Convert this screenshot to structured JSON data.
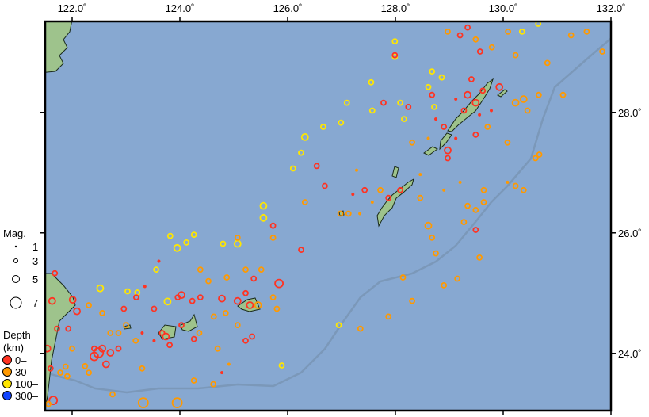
{
  "map": {
    "extent": {
      "lon": [
        121.5,
        132.0
      ],
      "lat": [
        23.05,
        29.51
      ]
    },
    "colors": {
      "ocean": "#87a8d1",
      "land": "#9ec38c",
      "trench": "#7b98b9",
      "frame": "#000000"
    },
    "lon_ticks": [
      {
        "value": 122,
        "label": "122.0˚"
      },
      {
        "value": 124,
        "label": "124.0˚"
      },
      {
        "value": 126,
        "label": "126.0˚"
      },
      {
        "value": 128,
        "label": "128.0˚"
      },
      {
        "value": 130,
        "label": "130.0˚"
      },
      {
        "value": 132,
        "label": "132.0˚"
      }
    ],
    "lat_ticks": [
      {
        "value": 28,
        "label": "28.0˚"
      },
      {
        "value": 26,
        "label": "26.0˚"
      },
      {
        "value": 24,
        "label": "24.0˚"
      }
    ]
  },
  "legend": {
    "magnitude_title": "Mag.",
    "magnitudes": [
      {
        "value": 1,
        "label": "1"
      },
      {
        "value": 3,
        "label": "3"
      },
      {
        "value": 5,
        "label": "5"
      },
      {
        "value": 7,
        "label": "7"
      }
    ],
    "depth_title_1": "Depth",
    "depth_title_2": "(km)",
    "depths": [
      {
        "label": "0–",
        "color": "#ff3322"
      },
      {
        "label": "30–",
        "color": "#ff9900"
      },
      {
        "label": "100–",
        "color": "#ffe600"
      },
      {
        "label": "300–",
        "color": "#1144ff"
      }
    ]
  },
  "earthquakes": [
    [
      126.32,
      27.59,
      4,
      2
    ],
    [
      126.25,
      27.33,
      3,
      2
    ],
    [
      126.1,
      27.07,
      3,
      2
    ],
    [
      126.66,
      27.76,
      3,
      2
    ],
    [
      126.99,
      27.83,
      3,
      2
    ],
    [
      127.1,
      28.16,
      3,
      2
    ],
    [
      127.55,
      28.5,
      3,
      2
    ],
    [
      127.99,
      29.18,
      3,
      2
    ],
    [
      127.99,
      28.92,
      3,
      2
    ],
    [
      125.55,
      26.45,
      4,
      2
    ],
    [
      125.55,
      26.25,
      4,
      2
    ],
    [
      125.07,
      25.82,
      4,
      2
    ],
    [
      124.8,
      25.82,
      3,
      2
    ],
    [
      124.26,
      25.97,
      3,
      2
    ],
    [
      124.12,
      25.84,
      3,
      2
    ],
    [
      123.95,
      25.75,
      4,
      2
    ],
    [
      123.82,
      25.95,
      3,
      2
    ],
    [
      123.56,
      25.39,
      3,
      2
    ],
    [
      122.52,
      25.08,
      4,
      2
    ],
    [
      123.03,
      25.03,
      3,
      2
    ],
    [
      123.21,
      25.01,
      3,
      2
    ],
    [
      123.77,
      24.86,
      4,
      2
    ],
    [
      125.89,
      23.8,
      3,
      2
    ],
    [
      126.95,
      24.47,
      3,
      2
    ],
    [
      128.86,
      28.58,
      3,
      2
    ],
    [
      128.61,
      28.42,
      3,
      2
    ],
    [
      128.68,
      28.68,
      3,
      2
    ],
    [
      128.72,
      28.09,
      3,
      2
    ],
    [
      128.09,
      28.16,
      3,
      2
    ],
    [
      128.16,
      27.89,
      3,
      2
    ],
    [
      127.57,
      28.03,
      3,
      2
    ],
    [
      130.35,
      29.34,
      3,
      2
    ],
    [
      130.65,
      29.47,
      3,
      2
    ],
    [
      129.34,
      28.29,
      4,
      0
    ],
    [
      129.49,
      28.16,
      4,
      0
    ],
    [
      129.27,
      28.03,
      3,
      0
    ],
    [
      129.62,
      28.36,
      3,
      0
    ],
    [
      129.12,
      28.22,
      2,
      0
    ],
    [
      129.56,
      27.96,
      2,
      0
    ],
    [
      129.78,
      28.03,
      2,
      0
    ],
    [
      129.41,
      28.55,
      3,
      0
    ],
    [
      128.9,
      27.76,
      3,
      0
    ],
    [
      129.49,
      27.63,
      3,
      0
    ],
    [
      128.97,
      27.24,
      3,
      0
    ],
    [
      128.97,
      27.37,
      4,
      0
    ],
    [
      129.12,
      27.57,
      2,
      0
    ],
    [
      129.57,
      29.01,
      3,
      0
    ],
    [
      129.2,
      29.28,
      3,
      0
    ],
    [
      129.34,
      29.41,
      3,
      0
    ],
    [
      129.93,
      28.42,
      4,
      0
    ],
    [
      129.49,
      26.05,
      3,
      0
    ],
    [
      130.23,
      28.16,
      4,
      1
    ],
    [
      130.38,
      28.22,
      4,
      1
    ],
    [
      130.66,
      28.29,
      3,
      1
    ],
    [
      130.45,
      28.03,
      3,
      1
    ],
    [
      131.11,
      28.29,
      3,
      1
    ],
    [
      131.26,
      29.28,
      3,
      1
    ],
    [
      131.55,
      29.34,
      3,
      1
    ],
    [
      131.84,
      29.01,
      3,
      1
    ],
    [
      130.82,
      28.82,
      3,
      1
    ],
    [
      130.23,
      28.95,
      3,
      1
    ],
    [
      129.79,
      29.08,
      3,
      1
    ],
    [
      129.49,
      29.21,
      3,
      1
    ],
    [
      130.09,
      29.34,
      3,
      1
    ],
    [
      128.97,
      29.34,
      3,
      1
    ],
    [
      129.71,
      27.76,
      3,
      1
    ],
    [
      130.08,
      27.5,
      3,
      1
    ],
    [
      130.23,
      26.78,
      3,
      1
    ],
    [
      130.38,
      26.71,
      3,
      1
    ],
    [
      130.6,
      27.24,
      3,
      1
    ],
    [
      130.67,
      27.3,
      3,
      1
    ],
    [
      130.08,
      26.84,
      2,
      1
    ],
    [
      129.64,
      26.71,
      3,
      1
    ],
    [
      129.34,
      26.45,
      3,
      1
    ],
    [
      129.49,
      26.38,
      3,
      1
    ],
    [
      129.64,
      26.51,
      3,
      1
    ],
    [
      129.27,
      26.18,
      3,
      1
    ],
    [
      129.56,
      25.59,
      3,
      1
    ],
    [
      128.61,
      26.12,
      4,
      1
    ],
    [
      128.68,
      25.92,
      3,
      1
    ],
    [
      128.75,
      25.66,
      3,
      1
    ],
    [
      128.9,
      25.13,
      3,
      1
    ],
    [
      129.15,
      25.24,
      3,
      1
    ],
    [
      128.14,
      25.26,
      3,
      1
    ],
    [
      128.31,
      24.87,
      3,
      1
    ],
    [
      127.87,
      24.61,
      3,
      1
    ],
    [
      127.35,
      24.41,
      3,
      1
    ],
    [
      128.46,
      26.58,
      3,
      1
    ],
    [
      129.2,
      26.84,
      2,
      1
    ],
    [
      128.9,
      26.71,
      2,
      1
    ],
    [
      128.46,
      26.97,
      2,
      1
    ],
    [
      128.31,
      27.5,
      3,
      1
    ],
    [
      128.61,
      27.57,
      2,
      1
    ],
    [
      127.72,
      26.71,
      3,
      1
    ],
    [
      127.57,
      26.51,
      2,
      1
    ],
    [
      126.98,
      26.32,
      3,
      1
    ],
    [
      127.13,
      26.32,
      3,
      1
    ],
    [
      126.32,
      26.51,
      3,
      1
    ],
    [
      127.34,
      26.32,
      2,
      1
    ],
    [
      127.28,
      27.04,
      2,
      1
    ],
    [
      127.87,
      26.58,
      3,
      0
    ],
    [
      128.09,
      26.71,
      3,
      0
    ],
    [
      127.43,
      26.71,
      3,
      0
    ],
    [
      127.21,
      26.64,
      2,
      0
    ],
    [
      126.54,
      27.11,
      3,
      0
    ],
    [
      126.69,
      26.78,
      3,
      0
    ],
    [
      128.24,
      28.09,
      3,
      0
    ],
    [
      127.99,
      28.95,
      3,
      0
    ],
    [
      127.78,
      28.16,
      3,
      0
    ],
    [
      128.75,
      27.89,
      2,
      0
    ],
    [
      128.68,
      28.29,
      3,
      0
    ],
    [
      125.73,
      26.12,
      3,
      0
    ],
    [
      126.25,
      25.72,
      3,
      0
    ],
    [
      125.84,
      25.16,
      5,
      0
    ],
    [
      125.37,
      25.24,
      3,
      0
    ],
    [
      125.07,
      24.87,
      4,
      0
    ],
    [
      124.78,
      24.91,
      4,
      0
    ],
    [
      125.3,
      24.8,
      4,
      0
    ],
    [
      125.22,
      25.0,
      3,
      0
    ],
    [
      125.45,
      24.8,
      4,
      1
    ],
    [
      125.34,
      24.28,
      3,
      0
    ],
    [
      125.22,
      24.21,
      3,
      0
    ],
    [
      124.23,
      24.87,
      3,
      0
    ],
    [
      124.03,
      24.97,
      4,
      0
    ],
    [
      123.96,
      24.93,
      3,
      0
    ],
    [
      123.74,
      24.28,
      4,
      0
    ],
    [
      123.81,
      24.14,
      3,
      0
    ],
    [
      123.67,
      24.34,
      3,
      0
    ],
    [
      124.03,
      24.47,
      3,
      0
    ],
    [
      124.26,
      24.24,
      3,
      0
    ],
    [
      123.52,
      24.21,
      2,
      0
    ],
    [
      123.3,
      24.34,
      2,
      0
    ],
    [
      123.61,
      25.53,
      2,
      0
    ],
    [
      123.19,
      24.93,
      3,
      0
    ],
    [
      123.52,
      24.74,
      3,
      0
    ],
    [
      122.96,
      24.74,
      3,
      0
    ],
    [
      122.49,
      24.01,
      6,
      0
    ],
    [
      122.41,
      23.95,
      5,
      0
    ],
    [
      122.56,
      24.08,
      4,
      0
    ],
    [
      122.71,
      24.01,
      4,
      0
    ],
    [
      122.86,
      24.08,
      3,
      0
    ],
    [
      122.63,
      23.82,
      4,
      0
    ],
    [
      122.41,
      24.08,
      3,
      0
    ],
    [
      122.09,
      24.7,
      4,
      0
    ],
    [
      122.01,
      24.89,
      4,
      0
    ],
    [
      121.63,
      24.87,
      4,
      0
    ],
    [
      121.72,
      24.41,
      3,
      0
    ],
    [
      121.54,
      24.08,
      4,
      0
    ],
    [
      121.6,
      23.75,
      3,
      0
    ],
    [
      121.65,
      23.22,
      5,
      0
    ],
    [
      121.68,
      25.33,
      3,
      0
    ],
    [
      121.93,
      24.41,
      3,
      0
    ],
    [
      124.38,
      24.93,
      3,
      0
    ],
    [
      123.35,
      25.11,
      2,
      0
    ],
    [
      124.78,
      23.68,
      2,
      0
    ],
    [
      123.32,
      23.18,
      6,
      1
    ],
    [
      123.95,
      23.18,
      6,
      1
    ],
    [
      122.75,
      23.32,
      3,
      1
    ],
    [
      121.56,
      23.16,
      3,
      1
    ],
    [
      122.24,
      23.79,
      3,
      1
    ],
    [
      121.88,
      23.78,
      3,
      1
    ],
    [
      121.78,
      23.68,
      3,
      1
    ],
    [
      122.0,
      24.08,
      3,
      1
    ],
    [
      122.31,
      24.8,
      3,
      1
    ],
    [
      122.56,
      24.67,
      3,
      1
    ],
    [
      122.86,
      24.34,
      3,
      1
    ],
    [
      123.0,
      24.47,
      3,
      1
    ],
    [
      123.18,
      24.21,
      3,
      1
    ],
    [
      123.3,
      23.75,
      3,
      1
    ],
    [
      124.26,
      23.55,
      3,
      1
    ],
    [
      124.62,
      23.49,
      3,
      1
    ],
    [
      125.07,
      24.47,
      3,
      1
    ],
    [
      124.85,
      24.67,
      3,
      1
    ],
    [
      124.63,
      24.61,
      3,
      1
    ],
    [
      124.36,
      24.34,
      3,
      1
    ],
    [
      124.87,
      25.26,
      3,
      1
    ],
    [
      125.22,
      25.39,
      3,
      1
    ],
    [
      125.73,
      24.93,
      3,
      1
    ],
    [
      125.8,
      24.74,
      3,
      1
    ],
    [
      124.7,
      24.08,
      3,
      1
    ],
    [
      125.07,
      25.92,
      3,
      1
    ],
    [
      125.73,
      25.92,
      3,
      1
    ],
    [
      125.51,
      25.39,
      3,
      1
    ],
    [
      124.53,
      25.2,
      3,
      1
    ],
    [
      124.38,
      25.39,
      3,
      1
    ],
    [
      122.31,
      23.68,
      3,
      1
    ],
    [
      124.91,
      23.82,
      2,
      1
    ],
    [
      122.71,
      24.34,
      3,
      1
    ],
    [
      121.91,
      23.62,
      3,
      1
    ]
  ]
}
